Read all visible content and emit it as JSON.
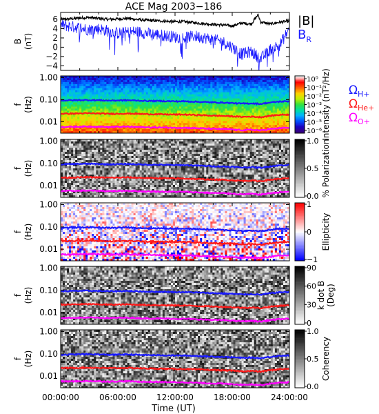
{
  "chart_data": {
    "title": "ACE Mag 2003−186",
    "xlabel": "Time (UT)",
    "x_ticks": [
      "00:00:00",
      "06:00:00",
      "12:00:00",
      "18:00:00",
      "24:00:00"
    ],
    "x_range_hours": [
      0,
      24
    ],
    "panels": [
      {
        "type": "line",
        "ylabel": [
          "B",
          "(nT)"
        ],
        "ylim": [
          -5,
          7.5
        ],
        "y_ticks": [
          "6",
          "4",
          "2",
          "0",
          "−2",
          "−4"
        ],
        "y_tick_values": [
          6,
          4,
          2,
          0,
          -2,
          -4
        ],
        "legend_placement": "right",
        "series": [
          {
            "label": "|B|",
            "color": "#000000",
            "x_hours": [
              0,
              1,
              2,
              3,
              4,
              5,
              6,
              7,
              8,
              9,
              10,
              11,
              12,
              13,
              14,
              15,
              16,
              17,
              18,
              19,
              20,
              20.7,
              21,
              22,
              23,
              24
            ],
            "values": [
              6.0,
              6.1,
              6.3,
              6.4,
              6.2,
              6.0,
              6.1,
              6.2,
              6.0,
              5.8,
              5.7,
              5.6,
              5.5,
              5.5,
              5.3,
              5.1,
              4.9,
              4.8,
              4.6,
              5.2,
              5.0,
              7.0,
              5.4,
              5.0,
              5.4,
              5.6
            ]
          },
          {
            "label": "B",
            "sub": "R",
            "color": "#1a1aff",
            "x_hours": [
              0,
              1,
              2,
              3,
              4,
              5,
              6,
              7,
              8,
              9,
              10,
              11,
              12,
              13,
              14,
              15,
              16,
              17,
              18,
              19,
              20,
              21,
              22,
              23,
              24
            ],
            "values": [
              4.8,
              4.5,
              4.2,
              3.8,
              4.0,
              3.5,
              3.0,
              3.2,
              3.4,
              3.0,
              2.8,
              2.5,
              2.2,
              2.0,
              2.4,
              2.1,
              1.6,
              1.2,
              0.0,
              -1.5,
              -1.0,
              -2.5,
              -0.5,
              0.5,
              4.0
            ]
          }
        ]
      },
      {
        "type": "heatmap",
        "ylabel": [
          "f",
          "(Hz)"
        ],
        "y_scale": "log",
        "ylim": [
          0.003,
          1.2
        ],
        "y_ticks": [
          "1.00",
          "0.10",
          "0.01"
        ],
        "y_tick_values": [
          1,
          0.1,
          0.01
        ],
        "colorbar": {
          "label": "Intensity (nT²/Hz)",
          "ticks": [
            "10⁰",
            "10⁻¹",
            "10⁻²",
            "10⁻³",
            "10⁻⁴",
            "10⁻⁵",
            "10⁻⁶"
          ],
          "colors": [
            "#3a007a",
            "#1a00c0",
            "#0050ff",
            "#00b0ff",
            "#00e0a0",
            "#30e040",
            "#c0f000",
            "#ffd000",
            "#ff6000",
            "#ff0000",
            "#ffffff"
          ]
        },
        "legend": [
          {
            "label": "Ω",
            "sub": "H+",
            "color": "#1a1aff"
          },
          {
            "label": "Ω",
            "sub": "He+",
            "color": "#ff1a1a"
          },
          {
            "label": "Ω",
            "sub": "O+",
            "color": "#ff00ff"
          }
        ]
      },
      {
        "type": "heatmap",
        "ylabel": [
          "f",
          "(Hz)"
        ],
        "y_scale": "log",
        "ylim": [
          0.003,
          1.2
        ],
        "y_ticks": [
          "1.00",
          "0.10",
          "0.01"
        ],
        "y_tick_values": [
          1,
          0.1,
          0.01
        ],
        "colorbar": {
          "label": "% Polarization",
          "ticks": [
            "1.0",
            "0.5",
            "0.0"
          ],
          "tick_values": [
            1.0,
            0.5,
            0.0
          ],
          "colors": [
            "#ffffff",
            "#000000"
          ]
        }
      },
      {
        "type": "heatmap",
        "ylabel": [
          "f",
          "(Hz)"
        ],
        "y_scale": "log",
        "ylim": [
          0.003,
          1.2
        ],
        "y_ticks": [
          "1.00",
          "0.10",
          "0.01"
        ],
        "y_tick_values": [
          1,
          0.1,
          0.01
        ],
        "colorbar": {
          "label": "Ellipticity",
          "ticks": [
            "1",
            "0",
            "−1"
          ],
          "tick_values": [
            1,
            0,
            -1
          ],
          "colors": [
            "#0000ff",
            "#ffffff",
            "#ff0000"
          ]
        }
      },
      {
        "type": "heatmap",
        "ylabel": [
          "f",
          "(Hz)"
        ],
        "y_scale": "log",
        "ylim": [
          0.003,
          1.2
        ],
        "y_ticks": [
          "1.00",
          "0.10",
          "0.01"
        ],
        "y_tick_values": [
          1,
          0.1,
          0.01
        ],
        "colorbar": {
          "label": [
            "k dot B",
            "(Deg)"
          ],
          "ticks": [
            "90",
            "60",
            "30",
            "0"
          ],
          "tick_values": [
            90,
            60,
            30,
            0
          ],
          "colors": [
            "#ffffff",
            "#000000"
          ]
        }
      },
      {
        "type": "heatmap",
        "ylabel": [
          "f",
          "(Hz)"
        ],
        "y_scale": "log",
        "ylim": [
          0.003,
          1.2
        ],
        "y_ticks": [
          "1.00",
          "0.10",
          "0.01"
        ],
        "y_tick_values": [
          1,
          0.1,
          0.01
        ],
        "colorbar": {
          "label": "Coherency",
          "ticks": [
            "1.0",
            "0.5",
            "0.0"
          ],
          "tick_values": [
            1.0,
            0.5,
            0.0
          ],
          "colors": [
            "#ffffff",
            "#000000"
          ]
        }
      }
    ],
    "gyrofrequency_lines": {
      "x_hours": [
        0,
        1,
        2,
        3,
        4,
        5,
        6,
        7,
        8,
        9,
        10,
        11,
        12,
        13,
        14,
        15,
        16,
        17,
        18,
        19,
        20,
        21,
        22,
        23,
        24
      ],
      "H_plus_hz": [
        0.092,
        0.093,
        0.095,
        0.096,
        0.094,
        0.091,
        0.092,
        0.094,
        0.091,
        0.088,
        0.087,
        0.086,
        0.084,
        0.084,
        0.081,
        0.078,
        0.075,
        0.073,
        0.07,
        0.066,
        0.068,
        0.064,
        0.074,
        0.082,
        0.085
      ],
      "He_plus_hz": [
        0.023,
        0.0232,
        0.0237,
        0.024,
        0.0235,
        0.0228,
        0.023,
        0.0234,
        0.0228,
        0.022,
        0.0218,
        0.0214,
        0.021,
        0.021,
        0.0202,
        0.0195,
        0.0188,
        0.0183,
        0.0175,
        0.0165,
        0.017,
        0.016,
        0.0185,
        0.0205,
        0.0212
      ],
      "O_plus_hz": [
        0.0058,
        0.0058,
        0.0059,
        0.006,
        0.0059,
        0.0057,
        0.0058,
        0.0059,
        0.0057,
        0.0055,
        0.0055,
        0.0054,
        0.0053,
        0.0053,
        0.0051,
        0.0049,
        0.0047,
        0.0046,
        0.0044,
        0.0041,
        0.0043,
        0.004,
        0.0046,
        0.0051,
        0.0053
      ]
    }
  }
}
